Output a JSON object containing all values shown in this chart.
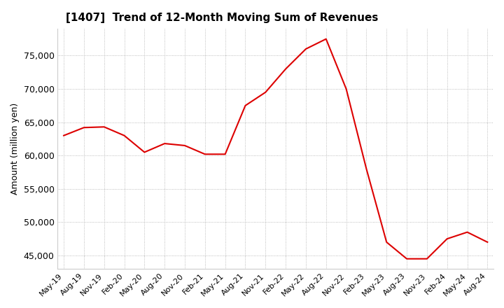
{
  "title": "[1407]  Trend of 12-Month Moving Sum of Revenues",
  "ylabel": "Amount (million yen)",
  "background_color": "#ffffff",
  "plot_bg_color": "#ffffff",
  "grid_color": "#aaaaaa",
  "line_color": "#dd0000",
  "ylim": [
    43000,
    79000
  ],
  "yticks": [
    45000,
    50000,
    55000,
    60000,
    65000,
    70000,
    75000
  ],
  "x_labels": [
    "May-19",
    "Aug-19",
    "Nov-19",
    "Feb-20",
    "May-20",
    "Aug-20",
    "Nov-20",
    "Feb-21",
    "May-21",
    "Aug-21",
    "Nov-21",
    "Feb-22",
    "May-22",
    "Aug-22",
    "Nov-22",
    "Feb-23",
    "May-23",
    "Aug-23",
    "Nov-23",
    "Feb-24",
    "May-24",
    "Aug-24"
  ],
  "values": [
    63000,
    64200,
    64300,
    63000,
    60500,
    61800,
    61500,
    60200,
    60200,
    67500,
    69500,
    73000,
    76000,
    77500,
    70000,
    58000,
    47000,
    44500,
    44500,
    47500,
    48500,
    47000
  ]
}
